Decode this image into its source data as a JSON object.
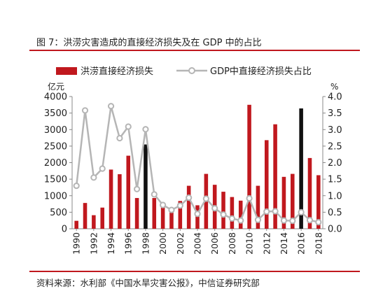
{
  "figure": {
    "title": "图 7：洪涝灾害造成的直接经济损失及在 GDP 中的占比",
    "source": "资料来源：水利部《中国水旱灾害公报》，中信证券研究部"
  },
  "chart_data": {
    "type": "bar",
    "title": "",
    "years": [
      1990,
      1991,
      1992,
      1993,
      1994,
      1995,
      1996,
      1997,
      1998,
      1999,
      2000,
      2001,
      2002,
      2003,
      2004,
      2005,
      2006,
      2007,
      2008,
      2009,
      2010,
      2011,
      2012,
      2013,
      2014,
      2015,
      2016,
      2017,
      2018
    ],
    "x_tick_labels": [
      "1990",
      "1992",
      "1994",
      "1996",
      "1998",
      "2000",
      "2002",
      "2004",
      "2006",
      "2008",
      "2010",
      "2012",
      "2014",
      "2016",
      "2018"
    ],
    "series": [
      {
        "name": "洪涝直接经济损失",
        "type": "bar",
        "axis": "left",
        "color": "#c0181e",
        "highlight_color": "#111111",
        "highlight_years": [
          1998,
          2016
        ],
        "values": [
          240,
          780,
          410,
          640,
          1790,
          1650,
          2210,
          930,
          2550,
          930,
          710,
          620,
          840,
          1300,
          710,
          1660,
          1330,
          1120,
          960,
          850,
          3750,
          1300,
          2680,
          3160,
          1570,
          1660,
          3640,
          2140,
          1620
        ]
      },
      {
        "name": "GDP中直接经济损失占比",
        "type": "line",
        "axis": "right",
        "color": "#b5b5b5",
        "values": [
          1.3,
          3.58,
          1.55,
          1.82,
          3.71,
          2.74,
          3.09,
          1.2,
          3.01,
          1.04,
          0.72,
          0.57,
          0.7,
          0.94,
          0.45,
          0.91,
          0.62,
          0.43,
          0.31,
          0.25,
          0.92,
          0.27,
          0.52,
          0.53,
          0.25,
          0.24,
          0.5,
          0.26,
          0.2
        ]
      }
    ],
    "left_axis": {
      "unit": "亿元",
      "min": 0,
      "max": 4000,
      "ticks": [
        "0",
        "500",
        "1000",
        "1500",
        "2000",
        "2500",
        "3000",
        "3500",
        "4000"
      ]
    },
    "right_axis": {
      "unit": "%",
      "min": 0,
      "max": 4.0,
      "ticks": [
        "0.0",
        "0.5",
        "1.0",
        "1.5",
        "2.0",
        "2.5",
        "3.0",
        "3.5",
        "4.0"
      ]
    },
    "grid": false,
    "legend_position": "top"
  }
}
